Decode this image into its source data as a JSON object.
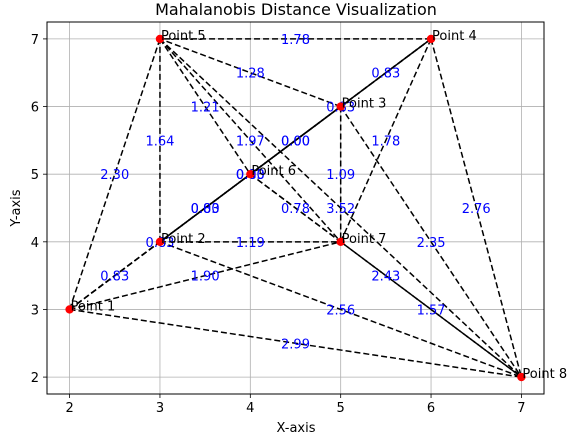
{
  "chart_data": {
    "type": "scatter",
    "title": "Mahalanobis Distance Visualization",
    "xlabel": "X-axis",
    "ylabel": "Y-axis",
    "xlim": [
      1.75,
      7.25
    ],
    "ylim": [
      1.75,
      7.25
    ],
    "xticks": [
      2,
      3,
      4,
      5,
      6,
      7
    ],
    "yticks": [
      2,
      3,
      4,
      5,
      6,
      7
    ],
    "grid": true,
    "point_color": "#ff0000",
    "edge_label_color": "#0000ff",
    "points": [
      {
        "label": "Point 1",
        "x": 2,
        "y": 3
      },
      {
        "label": "Point 2",
        "x": 3,
        "y": 4
      },
      {
        "label": "Point 3",
        "x": 5,
        "y": 6
      },
      {
        "label": "Point 4",
        "x": 6,
        "y": 7
      },
      {
        "label": "Point 5",
        "x": 3,
        "y": 7
      },
      {
        "label": "Point 6",
        "x": 4,
        "y": 5
      },
      {
        "label": "Point 7",
        "x": 5,
        "y": 4
      },
      {
        "label": "Point 8",
        "x": 7,
        "y": 2
      }
    ],
    "edges": [
      {
        "from": 0,
        "to": 1,
        "label": "0.83"
      },
      {
        "from": 0,
        "to": 2,
        "label": "0.83"
      },
      {
        "from": 0,
        "to": 3,
        "label": "0.83"
      },
      {
        "from": 0,
        "to": 4,
        "label": "2.30"
      },
      {
        "from": 0,
        "to": 5,
        "label": "0.83"
      },
      {
        "from": 0,
        "to": 6,
        "label": "1.90"
      },
      {
        "from": 0,
        "to": 7,
        "label": "2.99"
      },
      {
        "from": 1,
        "to": 2,
        "label": "0.00"
      },
      {
        "from": 1,
        "to": 3,
        "label": "0.00"
      },
      {
        "from": 1,
        "to": 4,
        "label": "1.64"
      },
      {
        "from": 1,
        "to": 5,
        "label": "0.00"
      },
      {
        "from": 1,
        "to": 6,
        "label": "1.19"
      },
      {
        "from": 1,
        "to": 7,
        "label": "2.56"
      },
      {
        "from": 2,
        "to": 3,
        "label": "0.83"
      },
      {
        "from": 2,
        "to": 4,
        "label": "1.28"
      },
      {
        "from": 2,
        "to": 5,
        "label": "0.00"
      },
      {
        "from": 2,
        "to": 6,
        "label": "1.09"
      },
      {
        "from": 2,
        "to": 7,
        "label": "2.35"
      },
      {
        "from": 3,
        "to": 4,
        "label": "1.78"
      },
      {
        "from": 3,
        "to": 5,
        "label": "0.83"
      },
      {
        "from": 3,
        "to": 6,
        "label": "1.78"
      },
      {
        "from": 3,
        "to": 7,
        "label": "2.76"
      },
      {
        "from": 4,
        "to": 5,
        "label": "1.21"
      },
      {
        "from": 4,
        "to": 6,
        "label": "1.97"
      },
      {
        "from": 4,
        "to": 7,
        "label": "3.52"
      },
      {
        "from": 5,
        "to": 6,
        "label": "0.78"
      },
      {
        "from": 5,
        "to": 7,
        "label": "2.43"
      },
      {
        "from": 6,
        "to": 7,
        "label": "1.57"
      }
    ]
  }
}
